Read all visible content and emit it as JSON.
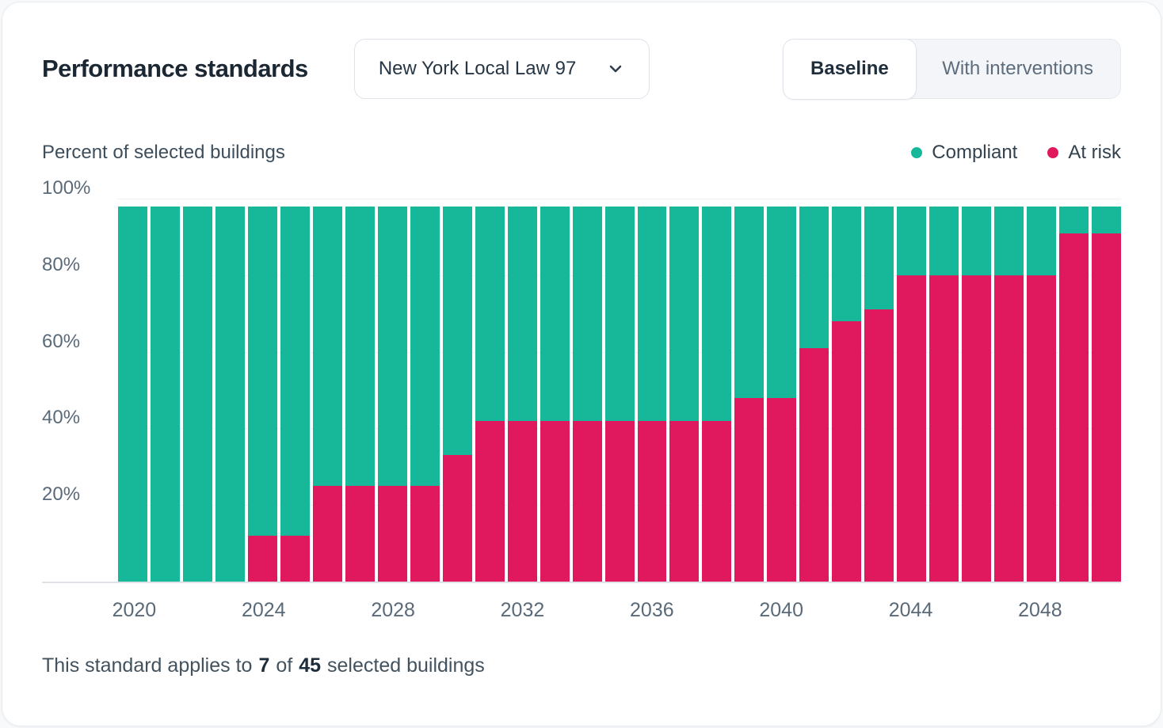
{
  "header": {
    "title": "Performance standards",
    "standard_dropdown": {
      "value": "New York Local Law 97"
    },
    "scenario_toggle": {
      "options": [
        {
          "label": "Baseline",
          "selected": true
        },
        {
          "label": "With interventions",
          "selected": false
        }
      ]
    }
  },
  "chart": {
    "subtitle": "Percent of selected buildings",
    "legend": [
      {
        "label": "Compliant",
        "color": "#17B89A"
      },
      {
        "label": "At risk",
        "color": "#E0195E"
      }
    ]
  },
  "chart_data": {
    "type": "bar",
    "stacked": true,
    "unit": "percent",
    "title": "Percent of selected buildings",
    "categories": [
      2020,
      2021,
      2022,
      2023,
      2024,
      2025,
      2026,
      2027,
      2028,
      2029,
      2030,
      2031,
      2032,
      2033,
      2034,
      2035,
      2036,
      2037,
      2038,
      2039,
      2040,
      2041,
      2042,
      2043,
      2044,
      2045,
      2046,
      2047,
      2048,
      2049,
      2050
    ],
    "series": [
      {
        "name": "Compliant",
        "color": "#17B89A",
        "values": [
          100,
          100,
          100,
          100,
          88,
          88,
          75,
          75,
          75,
          75,
          67,
          58,
          58,
          58,
          58,
          58,
          58,
          58,
          58,
          52,
          52,
          39,
          32,
          29,
          20,
          20,
          20,
          20,
          20,
          9,
          9
        ]
      },
      {
        "name": "At risk",
        "color": "#E0195E",
        "values": [
          0,
          0,
          0,
          0,
          12,
          12,
          25,
          25,
          25,
          25,
          33,
          42,
          42,
          42,
          42,
          42,
          42,
          42,
          42,
          48,
          48,
          61,
          68,
          71,
          80,
          80,
          80,
          80,
          80,
          91,
          91
        ]
      }
    ],
    "ylim": [
      0,
      100
    ],
    "yticks": [
      20,
      40,
      60,
      80,
      100
    ],
    "ytick_format": "{v}%",
    "xticks": [
      2020,
      2024,
      2028,
      2032,
      2036,
      2040,
      2044,
      2048
    ],
    "grid": true,
    "legend_position": "top-right"
  },
  "footer": {
    "prefix": "This standard applies to",
    "count": "7",
    "conjunction": "of",
    "total": "45",
    "suffix": "selected buildings"
  }
}
